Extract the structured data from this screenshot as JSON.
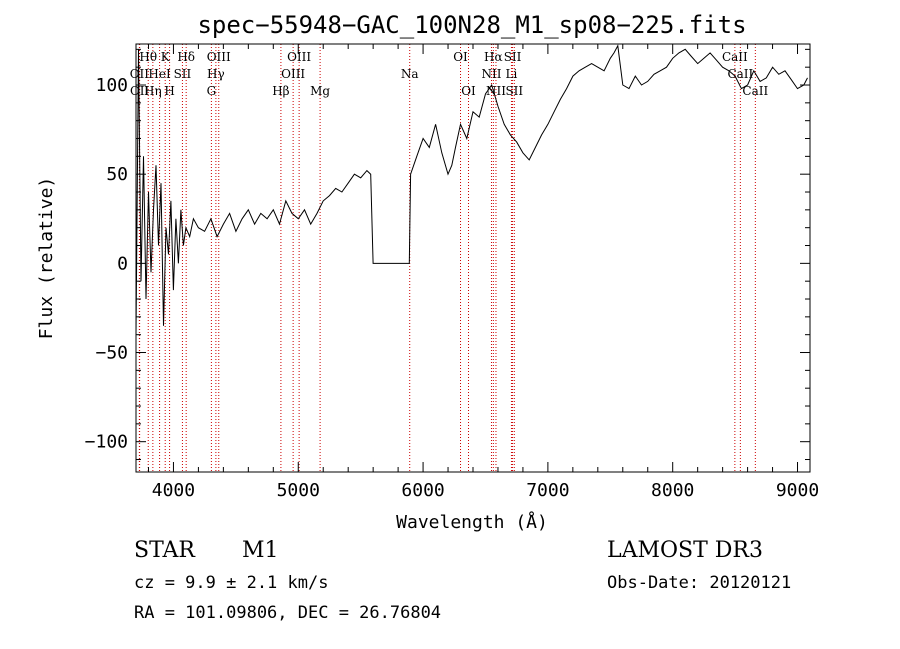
{
  "chart_data": {
    "type": "line",
    "title": "spec−55948−GAC_100N28_M1_sp08−225.fits",
    "xlabel": "Wavelength (Å)",
    "ylabel": "Flux (relative)",
    "xlim": [
      3700,
      9100
    ],
    "ylim": [
      -117,
      123
    ],
    "xticks": [
      4000,
      5000,
      6000,
      7000,
      8000,
      9000
    ],
    "yticks": [
      -100,
      -50,
      0,
      50,
      100
    ],
    "tick_labels_y": [
      "−100",
      "−50",
      "0",
      "50",
      "100"
    ],
    "series": [
      {
        "name": "spectrum",
        "x": [
          3700,
          3720,
          3740,
          3760,
          3780,
          3800,
          3820,
          3840,
          3860,
          3880,
          3900,
          3920,
          3940,
          3960,
          3980,
          4000,
          4020,
          4040,
          4060,
          4080,
          4100,
          4130,
          4160,
          4200,
          4250,
          4300,
          4350,
          4400,
          4450,
          4500,
          4550,
          4600,
          4650,
          4700,
          4750,
          4800,
          4850,
          4900,
          4950,
          5000,
          5050,
          5100,
          5150,
          5200,
          5250,
          5300,
          5350,
          5400,
          5450,
          5500,
          5550,
          5580,
          5600,
          5650,
          5700,
          5750,
          5800,
          5850,
          5890,
          5900,
          5950,
          6000,
          6050,
          6100,
          6150,
          6200,
          6230,
          6260,
          6300,
          6350,
          6400,
          6450,
          6500,
          6550,
          6600,
          6650,
          6700,
          6750,
          6800,
          6850,
          6900,
          6950,
          7000,
          7050,
          7100,
          7150,
          7200,
          7250,
          7300,
          7350,
          7400,
          7450,
          7500,
          7530,
          7560,
          7600,
          7650,
          7700,
          7750,
          7800,
          7850,
          7900,
          7950,
          8000,
          8050,
          8100,
          8150,
          8200,
          8250,
          8300,
          8350,
          8400,
          8450,
          8500,
          8550,
          8600,
          8650,
          8700,
          8750,
          8800,
          8850,
          8900,
          8950,
          9000,
          9050,
          9080
        ],
        "y": [
          -40,
          120,
          -10,
          60,
          -20,
          40,
          -5,
          30,
          55,
          10,
          45,
          -35,
          20,
          5,
          35,
          -15,
          25,
          0,
          30,
          10,
          20,
          15,
          25,
          20,
          18,
          25,
          15,
          22,
          28,
          18,
          25,
          30,
          22,
          28,
          25,
          30,
          22,
          35,
          28,
          25,
          30,
          22,
          28,
          35,
          38,
          42,
          40,
          45,
          50,
          48,
          52,
          50,
          0,
          0,
          0,
          0,
          0,
          0,
          0,
          50,
          60,
          70,
          65,
          78,
          62,
          50,
          55,
          65,
          78,
          70,
          85,
          82,
          95,
          100,
          88,
          78,
          72,
          68,
          62,
          58,
          65,
          72,
          78,
          85,
          92,
          98,
          105,
          108,
          110,
          112,
          110,
          108,
          115,
          118,
          122,
          100,
          98,
          105,
          100,
          102,
          106,
          108,
          110,
          115,
          118,
          120,
          116,
          112,
          115,
          118,
          114,
          110,
          108,
          105,
          98,
          100,
          108,
          102,
          104,
          110,
          106,
          108,
          103,
          98,
          100,
          104
        ]
      }
    ],
    "emission_lines": [
      {
        "label": "Hθ",
        "x": 3798,
        "row": 0
      },
      {
        "label": "K",
        "x": 3934,
        "row": 0
      },
      {
        "label": "Hδ",
        "x": 4102,
        "row": 0
      },
      {
        "label": "OIII",
        "x": 4363,
        "row": 0
      },
      {
        "label": "OIII",
        "x": 5007,
        "row": 0
      },
      {
        "label": "OI",
        "x": 6300,
        "row": 0
      },
      {
        "label": "Hα",
        "x": 6563,
        "row": 0
      },
      {
        "label": "SII",
        "x": 6717,
        "row": 0
      },
      {
        "label": "CaII",
        "x": 8498,
        "row": 0
      },
      {
        "label": "OII",
        "x": 3727,
        "row": 1
      },
      {
        "label": "HeI",
        "x": 3889,
        "row": 1
      },
      {
        "label": "SII",
        "x": 4072,
        "row": 1
      },
      {
        "label": "Hγ",
        "x": 4340,
        "row": 1
      },
      {
        "label": "OIII",
        "x": 4959,
        "row": 1
      },
      {
        "label": "Na",
        "x": 5893,
        "row": 1
      },
      {
        "label": "NII",
        "x": 6548,
        "row": 1
      },
      {
        "label": "Li",
        "x": 6708,
        "row": 1
      },
      {
        "label": "CaII",
        "x": 8542,
        "row": 1
      },
      {
        "label": "OII",
        "x": 3729,
        "row": 2
      },
      {
        "label": "Hη",
        "x": 3835,
        "row": 2
      },
      {
        "label": "H",
        "x": 3969,
        "row": 2
      },
      {
        "label": "G",
        "x": 4304,
        "row": 2
      },
      {
        "label": "Hβ",
        "x": 4861,
        "row": 2
      },
      {
        "label": "Mg",
        "x": 5175,
        "row": 2
      },
      {
        "label": "OI",
        "x": 6364,
        "row": 2
      },
      {
        "label": "NII",
        "x": 6584,
        "row": 2
      },
      {
        "label": "SII",
        "x": 6731,
        "row": 2
      },
      {
        "label": "CaII",
        "x": 8662,
        "row": 2
      }
    ]
  },
  "info": {
    "object_class": "STAR",
    "subclass": "M1",
    "survey": "LAMOST DR3",
    "cz": "cz = 9.9 ± 2.1 km/s",
    "obs_date": "Obs-Date: 20120121",
    "coords": "RA = 101.09806, DEC =  26.76804"
  }
}
